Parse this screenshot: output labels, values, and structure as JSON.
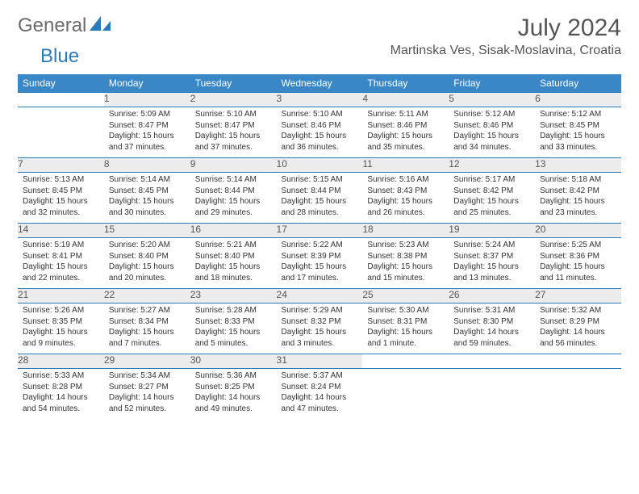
{
  "logo": {
    "text1": "General",
    "text2": "Blue"
  },
  "title": "July 2024",
  "location": "Martinska Ves, Sisak-Moslavina, Croatia",
  "colors": {
    "header_bg": "#3a87c8",
    "header_text": "#ffffff",
    "daynum_bg": "#ececec",
    "border": "#2a7ab9",
    "logo_gray": "#6b6b6b",
    "logo_blue": "#2a7ab9"
  },
  "day_headers": [
    "Sunday",
    "Monday",
    "Tuesday",
    "Wednesday",
    "Thursday",
    "Friday",
    "Saturday"
  ],
  "weeks": [
    [
      {
        "n": "",
        "sr": "",
        "ss": "",
        "dl": ""
      },
      {
        "n": "1",
        "sr": "Sunrise: 5:09 AM",
        "ss": "Sunset: 8:47 PM",
        "dl": "Daylight: 15 hours and 37 minutes."
      },
      {
        "n": "2",
        "sr": "Sunrise: 5:10 AM",
        "ss": "Sunset: 8:47 PM",
        "dl": "Daylight: 15 hours and 37 minutes."
      },
      {
        "n": "3",
        "sr": "Sunrise: 5:10 AM",
        "ss": "Sunset: 8:46 PM",
        "dl": "Daylight: 15 hours and 36 minutes."
      },
      {
        "n": "4",
        "sr": "Sunrise: 5:11 AM",
        "ss": "Sunset: 8:46 PM",
        "dl": "Daylight: 15 hours and 35 minutes."
      },
      {
        "n": "5",
        "sr": "Sunrise: 5:12 AM",
        "ss": "Sunset: 8:46 PM",
        "dl": "Daylight: 15 hours and 34 minutes."
      },
      {
        "n": "6",
        "sr": "Sunrise: 5:12 AM",
        "ss": "Sunset: 8:45 PM",
        "dl": "Daylight: 15 hours and 33 minutes."
      }
    ],
    [
      {
        "n": "7",
        "sr": "Sunrise: 5:13 AM",
        "ss": "Sunset: 8:45 PM",
        "dl": "Daylight: 15 hours and 32 minutes."
      },
      {
        "n": "8",
        "sr": "Sunrise: 5:14 AM",
        "ss": "Sunset: 8:45 PM",
        "dl": "Daylight: 15 hours and 30 minutes."
      },
      {
        "n": "9",
        "sr": "Sunrise: 5:14 AM",
        "ss": "Sunset: 8:44 PM",
        "dl": "Daylight: 15 hours and 29 minutes."
      },
      {
        "n": "10",
        "sr": "Sunrise: 5:15 AM",
        "ss": "Sunset: 8:44 PM",
        "dl": "Daylight: 15 hours and 28 minutes."
      },
      {
        "n": "11",
        "sr": "Sunrise: 5:16 AM",
        "ss": "Sunset: 8:43 PM",
        "dl": "Daylight: 15 hours and 26 minutes."
      },
      {
        "n": "12",
        "sr": "Sunrise: 5:17 AM",
        "ss": "Sunset: 8:42 PM",
        "dl": "Daylight: 15 hours and 25 minutes."
      },
      {
        "n": "13",
        "sr": "Sunrise: 5:18 AM",
        "ss": "Sunset: 8:42 PM",
        "dl": "Daylight: 15 hours and 23 minutes."
      }
    ],
    [
      {
        "n": "14",
        "sr": "Sunrise: 5:19 AM",
        "ss": "Sunset: 8:41 PM",
        "dl": "Daylight: 15 hours and 22 minutes."
      },
      {
        "n": "15",
        "sr": "Sunrise: 5:20 AM",
        "ss": "Sunset: 8:40 PM",
        "dl": "Daylight: 15 hours and 20 minutes."
      },
      {
        "n": "16",
        "sr": "Sunrise: 5:21 AM",
        "ss": "Sunset: 8:40 PM",
        "dl": "Daylight: 15 hours and 18 minutes."
      },
      {
        "n": "17",
        "sr": "Sunrise: 5:22 AM",
        "ss": "Sunset: 8:39 PM",
        "dl": "Daylight: 15 hours and 17 minutes."
      },
      {
        "n": "18",
        "sr": "Sunrise: 5:23 AM",
        "ss": "Sunset: 8:38 PM",
        "dl": "Daylight: 15 hours and 15 minutes."
      },
      {
        "n": "19",
        "sr": "Sunrise: 5:24 AM",
        "ss": "Sunset: 8:37 PM",
        "dl": "Daylight: 15 hours and 13 minutes."
      },
      {
        "n": "20",
        "sr": "Sunrise: 5:25 AM",
        "ss": "Sunset: 8:36 PM",
        "dl": "Daylight: 15 hours and 11 minutes."
      }
    ],
    [
      {
        "n": "21",
        "sr": "Sunrise: 5:26 AM",
        "ss": "Sunset: 8:35 PM",
        "dl": "Daylight: 15 hours and 9 minutes."
      },
      {
        "n": "22",
        "sr": "Sunrise: 5:27 AM",
        "ss": "Sunset: 8:34 PM",
        "dl": "Daylight: 15 hours and 7 minutes."
      },
      {
        "n": "23",
        "sr": "Sunrise: 5:28 AM",
        "ss": "Sunset: 8:33 PM",
        "dl": "Daylight: 15 hours and 5 minutes."
      },
      {
        "n": "24",
        "sr": "Sunrise: 5:29 AM",
        "ss": "Sunset: 8:32 PM",
        "dl": "Daylight: 15 hours and 3 minutes."
      },
      {
        "n": "25",
        "sr": "Sunrise: 5:30 AM",
        "ss": "Sunset: 8:31 PM",
        "dl": "Daylight: 15 hours and 1 minute."
      },
      {
        "n": "26",
        "sr": "Sunrise: 5:31 AM",
        "ss": "Sunset: 8:30 PM",
        "dl": "Daylight: 14 hours and 59 minutes."
      },
      {
        "n": "27",
        "sr": "Sunrise: 5:32 AM",
        "ss": "Sunset: 8:29 PM",
        "dl": "Daylight: 14 hours and 56 minutes."
      }
    ],
    [
      {
        "n": "28",
        "sr": "Sunrise: 5:33 AM",
        "ss": "Sunset: 8:28 PM",
        "dl": "Daylight: 14 hours and 54 minutes."
      },
      {
        "n": "29",
        "sr": "Sunrise: 5:34 AM",
        "ss": "Sunset: 8:27 PM",
        "dl": "Daylight: 14 hours and 52 minutes."
      },
      {
        "n": "30",
        "sr": "Sunrise: 5:36 AM",
        "ss": "Sunset: 8:25 PM",
        "dl": "Daylight: 14 hours and 49 minutes."
      },
      {
        "n": "31",
        "sr": "Sunrise: 5:37 AM",
        "ss": "Sunset: 8:24 PM",
        "dl": "Daylight: 14 hours and 47 minutes."
      },
      {
        "n": "",
        "sr": "",
        "ss": "",
        "dl": ""
      },
      {
        "n": "",
        "sr": "",
        "ss": "",
        "dl": ""
      },
      {
        "n": "",
        "sr": "",
        "ss": "",
        "dl": ""
      }
    ]
  ]
}
